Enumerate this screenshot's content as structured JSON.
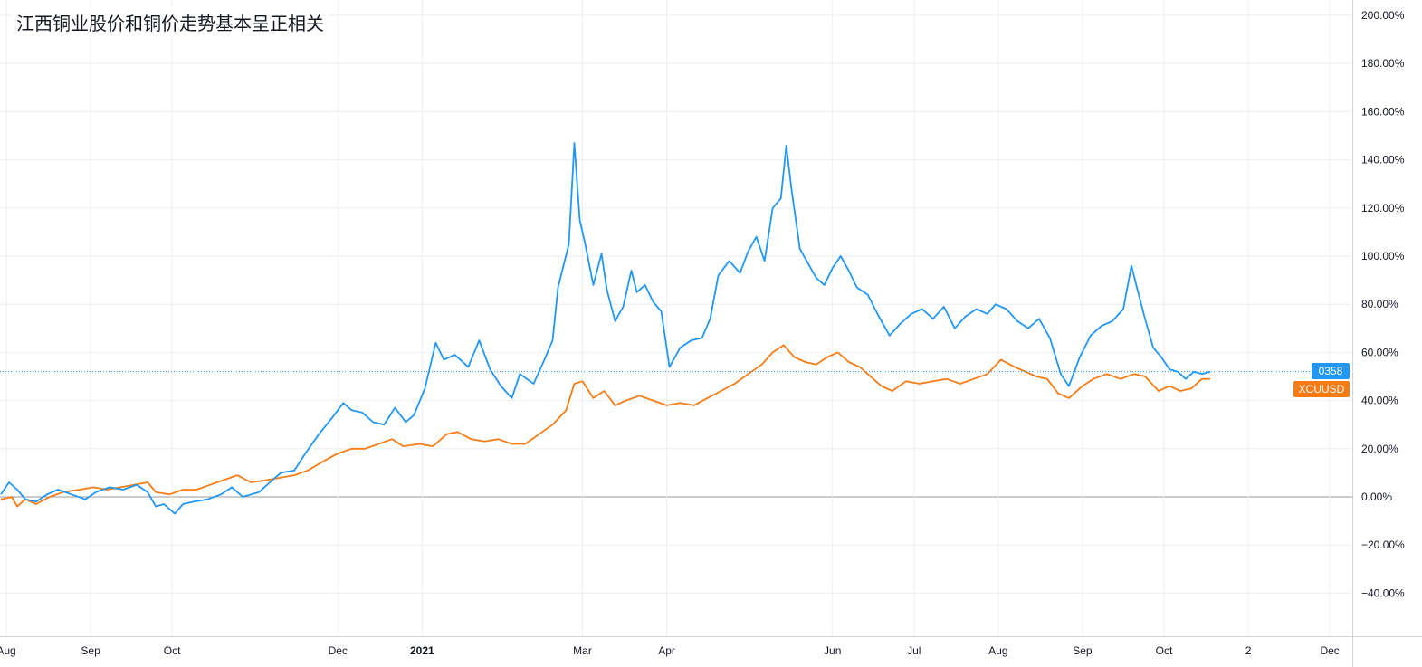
{
  "chart_data": {
    "type": "line",
    "title": "江西铜业股价和铜价走势基本呈正相关",
    "y_unit": "%",
    "ylim": [
      -50,
      200
    ],
    "y_ticks": [
      200,
      180,
      160,
      140,
      120,
      100,
      80,
      60,
      40,
      20,
      0,
      -20,
      -40
    ],
    "y_tick_labels": [
      "200.00%",
      "180.00%",
      "160.00%",
      "140.00%",
      "120.00%",
      "100.00%",
      "80.00%",
      "60.00%",
      "40.00%",
      "20.00%",
      "0.00%",
      "−20.00%",
      "−40.00%"
    ],
    "x_range": [
      "2020-07-29",
      "2021-12-15"
    ],
    "x_ticks": [
      {
        "date": "2020-08-01",
        "label": "Aug"
      },
      {
        "date": "2020-09-01",
        "label": "Sep"
      },
      {
        "date": "2020-10-01",
        "label": "Oct"
      },
      {
        "date": "2020-12-01",
        "label": "Dec"
      },
      {
        "date": "2021-01-01",
        "label": "2021"
      },
      {
        "date": "2021-03-01",
        "label": "Mar"
      },
      {
        "date": "2021-04-01",
        "label": "Apr"
      },
      {
        "date": "2021-06-01",
        "label": "Jun"
      },
      {
        "date": "2021-07-01",
        "label": "Jul"
      },
      {
        "date": "2021-08-01",
        "label": "Aug"
      },
      {
        "date": "2021-09-01",
        "label": "Sep"
      },
      {
        "date": "2021-10-01",
        "label": "Oct"
      },
      {
        "date": "2021-11-01",
        "label": "2"
      },
      {
        "date": "2021-12-01",
        "label": "Dec"
      }
    ],
    "grid": true,
    "series": [
      {
        "name": "0358",
        "color": "#2196f3",
        "last_value": 52,
        "points": [
          [
            "2020-07-30",
            1
          ],
          [
            "2020-08-02",
            6
          ],
          [
            "2020-08-05",
            3
          ],
          [
            "2020-08-08",
            -1
          ],
          [
            "2020-08-12",
            -2
          ],
          [
            "2020-08-16",
            1
          ],
          [
            "2020-08-20",
            3
          ],
          [
            "2020-08-25",
            1
          ],
          [
            "2020-08-30",
            -1
          ],
          [
            "2020-09-03",
            2
          ],
          [
            "2020-09-08",
            4
          ],
          [
            "2020-09-13",
            3
          ],
          [
            "2020-09-18",
            5
          ],
          [
            "2020-09-22",
            2
          ],
          [
            "2020-09-25",
            -4
          ],
          [
            "2020-09-28",
            -3
          ],
          [
            "2020-10-02",
            -7
          ],
          [
            "2020-10-05",
            -3
          ],
          [
            "2020-10-09",
            -2
          ],
          [
            "2020-10-14",
            -1
          ],
          [
            "2020-10-19",
            1
          ],
          [
            "2020-10-23",
            4
          ],
          [
            "2020-10-27",
            0
          ],
          [
            "2020-11-02",
            2
          ],
          [
            "2020-11-06",
            6
          ],
          [
            "2020-11-10",
            10
          ],
          [
            "2020-11-15",
            11
          ],
          [
            "2020-11-19",
            18
          ],
          [
            "2020-11-24",
            26
          ],
          [
            "2020-11-29",
            33
          ],
          [
            "2020-12-03",
            39
          ],
          [
            "2020-12-06",
            36
          ],
          [
            "2020-12-10",
            35
          ],
          [
            "2020-12-14",
            31
          ],
          [
            "2020-12-18",
            30
          ],
          [
            "2020-12-22",
            37
          ],
          [
            "2020-12-26",
            31
          ],
          [
            "2020-12-29",
            34
          ],
          [
            "2021-01-02",
            45
          ],
          [
            "2021-01-06",
            64
          ],
          [
            "2021-01-09",
            57
          ],
          [
            "2021-01-13",
            59
          ],
          [
            "2021-01-18",
            54
          ],
          [
            "2021-01-22",
            65
          ],
          [
            "2021-01-26",
            53
          ],
          [
            "2021-01-30",
            46
          ],
          [
            "2021-02-03",
            41
          ],
          [
            "2021-02-06",
            51
          ],
          [
            "2021-02-11",
            47
          ],
          [
            "2021-02-15",
            57
          ],
          [
            "2021-02-18",
            65
          ],
          [
            "2021-02-20",
            87
          ],
          [
            "2021-02-22",
            96
          ],
          [
            "2021-02-24",
            105
          ],
          [
            "2021-02-26",
            147
          ],
          [
            "2021-02-28",
            115
          ],
          [
            "2021-03-02",
            105
          ],
          [
            "2021-03-05",
            88
          ],
          [
            "2021-03-08",
            101
          ],
          [
            "2021-03-10",
            86
          ],
          [
            "2021-03-13",
            73
          ],
          [
            "2021-03-16",
            79
          ],
          [
            "2021-03-19",
            94
          ],
          [
            "2021-03-21",
            85
          ],
          [
            "2021-03-24",
            88
          ],
          [
            "2021-03-27",
            81
          ],
          [
            "2021-03-30",
            77
          ],
          [
            "2021-04-02",
            54
          ],
          [
            "2021-04-06",
            62
          ],
          [
            "2021-04-10",
            65
          ],
          [
            "2021-04-14",
            66
          ],
          [
            "2021-04-17",
            74
          ],
          [
            "2021-04-20",
            92
          ],
          [
            "2021-04-24",
            98
          ],
          [
            "2021-04-28",
            93
          ],
          [
            "2021-05-01",
            102
          ],
          [
            "2021-05-04",
            108
          ],
          [
            "2021-05-07",
            98
          ],
          [
            "2021-05-10",
            120
          ],
          [
            "2021-05-13",
            124
          ],
          [
            "2021-05-15",
            146
          ],
          [
            "2021-05-17",
            127
          ],
          [
            "2021-05-20",
            103
          ],
          [
            "2021-05-23",
            97
          ],
          [
            "2021-05-26",
            91
          ],
          [
            "2021-05-29",
            88
          ],
          [
            "2021-06-01",
            95
          ],
          [
            "2021-06-04",
            100
          ],
          [
            "2021-06-07",
            94
          ],
          [
            "2021-06-10",
            87
          ],
          [
            "2021-06-14",
            84
          ],
          [
            "2021-06-18",
            75
          ],
          [
            "2021-06-22",
            67
          ],
          [
            "2021-06-26",
            72
          ],
          [
            "2021-06-30",
            76
          ],
          [
            "2021-07-04",
            78
          ],
          [
            "2021-07-08",
            74
          ],
          [
            "2021-07-12",
            79
          ],
          [
            "2021-07-16",
            70
          ],
          [
            "2021-07-20",
            75
          ],
          [
            "2021-07-24",
            78
          ],
          [
            "2021-07-28",
            76
          ],
          [
            "2021-07-31",
            80
          ],
          [
            "2021-08-04",
            78
          ],
          [
            "2021-08-08",
            73
          ],
          [
            "2021-08-12",
            70
          ],
          [
            "2021-08-16",
            74
          ],
          [
            "2021-08-20",
            66
          ],
          [
            "2021-08-24",
            51
          ],
          [
            "2021-08-27",
            46
          ],
          [
            "2021-08-31",
            58
          ],
          [
            "2021-09-04",
            67
          ],
          [
            "2021-09-08",
            71
          ],
          [
            "2021-09-12",
            73
          ],
          [
            "2021-09-16",
            78
          ],
          [
            "2021-09-19",
            96
          ],
          [
            "2021-09-21",
            87
          ],
          [
            "2021-09-24",
            74
          ],
          [
            "2021-09-27",
            62
          ],
          [
            "2021-09-30",
            58
          ],
          [
            "2021-10-03",
            53
          ],
          [
            "2021-10-06",
            52
          ],
          [
            "2021-10-09",
            49
          ],
          [
            "2021-10-12",
            52
          ],
          [
            "2021-10-15",
            51
          ],
          [
            "2021-10-18",
            52
          ]
        ]
      },
      {
        "name": "XCUUSD",
        "color": "#f57c17",
        "last_value": 49,
        "points": [
          [
            "2020-07-30",
            -1
          ],
          [
            "2020-08-03",
            0
          ],
          [
            "2020-08-05",
            -4
          ],
          [
            "2020-08-08",
            -1
          ],
          [
            "2020-08-12",
            -3
          ],
          [
            "2020-08-17",
            0
          ],
          [
            "2020-08-22",
            2
          ],
          [
            "2020-08-28",
            3
          ],
          [
            "2020-09-02",
            4
          ],
          [
            "2020-09-07",
            3
          ],
          [
            "2020-09-12",
            4
          ],
          [
            "2020-09-17",
            5
          ],
          [
            "2020-09-22",
            6
          ],
          [
            "2020-09-25",
            2
          ],
          [
            "2020-09-30",
            1
          ],
          [
            "2020-10-05",
            3
          ],
          [
            "2020-10-10",
            3
          ],
          [
            "2020-10-15",
            5
          ],
          [
            "2020-10-20",
            7
          ],
          [
            "2020-10-25",
            9
          ],
          [
            "2020-10-30",
            6
          ],
          [
            "2020-11-05",
            7
          ],
          [
            "2020-11-10",
            8
          ],
          [
            "2020-11-15",
            9
          ],
          [
            "2020-11-20",
            11
          ],
          [
            "2020-11-26",
            15
          ],
          [
            "2020-12-01",
            18
          ],
          [
            "2020-12-06",
            20
          ],
          [
            "2020-12-11",
            20
          ],
          [
            "2020-12-16",
            22
          ],
          [
            "2020-12-21",
            24
          ],
          [
            "2020-12-25",
            21
          ],
          [
            "2020-12-31",
            22
          ],
          [
            "2021-01-05",
            21
          ],
          [
            "2021-01-10",
            26
          ],
          [
            "2021-01-14",
            27
          ],
          [
            "2021-01-19",
            24
          ],
          [
            "2021-01-24",
            23
          ],
          [
            "2021-01-29",
            24
          ],
          [
            "2021-02-03",
            22
          ],
          [
            "2021-02-08",
            22
          ],
          [
            "2021-02-13",
            26
          ],
          [
            "2021-02-18",
            30
          ],
          [
            "2021-02-23",
            36
          ],
          [
            "2021-02-26",
            47
          ],
          [
            "2021-03-01",
            48
          ],
          [
            "2021-03-05",
            41
          ],
          [
            "2021-03-09",
            44
          ],
          [
            "2021-03-13",
            38
          ],
          [
            "2021-03-17",
            40
          ],
          [
            "2021-03-22",
            42
          ],
          [
            "2021-03-27",
            40
          ],
          [
            "2021-04-01",
            38
          ],
          [
            "2021-04-06",
            39
          ],
          [
            "2021-04-11",
            38
          ],
          [
            "2021-04-16",
            41
          ],
          [
            "2021-04-21",
            44
          ],
          [
            "2021-04-26",
            47
          ],
          [
            "2021-05-01",
            51
          ],
          [
            "2021-05-06",
            55
          ],
          [
            "2021-05-10",
            60
          ],
          [
            "2021-05-14",
            63
          ],
          [
            "2021-05-18",
            58
          ],
          [
            "2021-05-22",
            56
          ],
          [
            "2021-05-26",
            55
          ],
          [
            "2021-05-30",
            58
          ],
          [
            "2021-06-03",
            60
          ],
          [
            "2021-06-07",
            56
          ],
          [
            "2021-06-11",
            54
          ],
          [
            "2021-06-15",
            50
          ],
          [
            "2021-06-19",
            46
          ],
          [
            "2021-06-23",
            44
          ],
          [
            "2021-06-28",
            48
          ],
          [
            "2021-07-03",
            47
          ],
          [
            "2021-07-08",
            48
          ],
          [
            "2021-07-13",
            49
          ],
          [
            "2021-07-18",
            47
          ],
          [
            "2021-07-23",
            49
          ],
          [
            "2021-07-28",
            51
          ],
          [
            "2021-08-02",
            57
          ],
          [
            "2021-08-07",
            54
          ],
          [
            "2021-08-11",
            52
          ],
          [
            "2021-08-15",
            50
          ],
          [
            "2021-08-19",
            49
          ],
          [
            "2021-08-23",
            43
          ],
          [
            "2021-08-27",
            41
          ],
          [
            "2021-09-01",
            46
          ],
          [
            "2021-09-05",
            49
          ],
          [
            "2021-09-10",
            51
          ],
          [
            "2021-09-15",
            49
          ],
          [
            "2021-09-20",
            51
          ],
          [
            "2021-09-24",
            50
          ],
          [
            "2021-09-29",
            44
          ],
          [
            "2021-10-03",
            46
          ],
          [
            "2021-10-07",
            44
          ],
          [
            "2021-10-11",
            45
          ],
          [
            "2021-10-15",
            49
          ],
          [
            "2021-10-18",
            49
          ]
        ]
      }
    ]
  }
}
